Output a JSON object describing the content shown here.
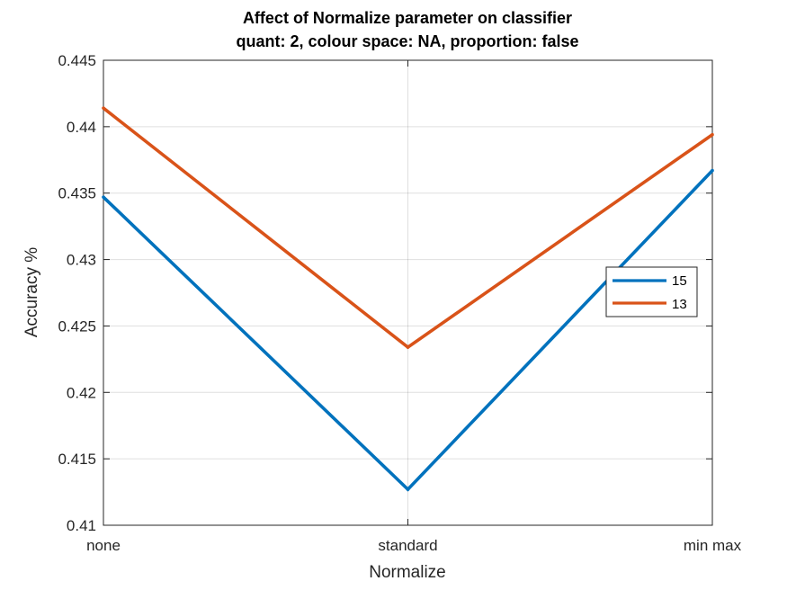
{
  "chart_data": {
    "type": "line",
    "title": "Affect of Normalize parameter on classifier",
    "subtitle": "quant: 2, colour space: NA, proportion: false",
    "xlabel": "Normalize",
    "ylabel": "Accuracy %",
    "categories": [
      "none",
      "standard",
      "min max"
    ],
    "ylim": [
      0.41,
      0.445
    ],
    "yticks": [
      0.41,
      0.415,
      0.42,
      0.425,
      0.43,
      0.435,
      0.44,
      0.445
    ],
    "ytick_labels": [
      "0.41",
      "0.415",
      "0.42",
      "0.425",
      "0.43",
      "0.435",
      "0.44",
      "0.445"
    ],
    "grid": true,
    "legend_position": "right",
    "series": [
      {
        "name": "15",
        "color": "#0072BD",
        "values": [
          0.4347,
          0.4127,
          0.4367
        ]
      },
      {
        "name": "13",
        "color": "#D95319",
        "values": [
          0.4414,
          0.4234,
          0.4394
        ]
      }
    ]
  }
}
